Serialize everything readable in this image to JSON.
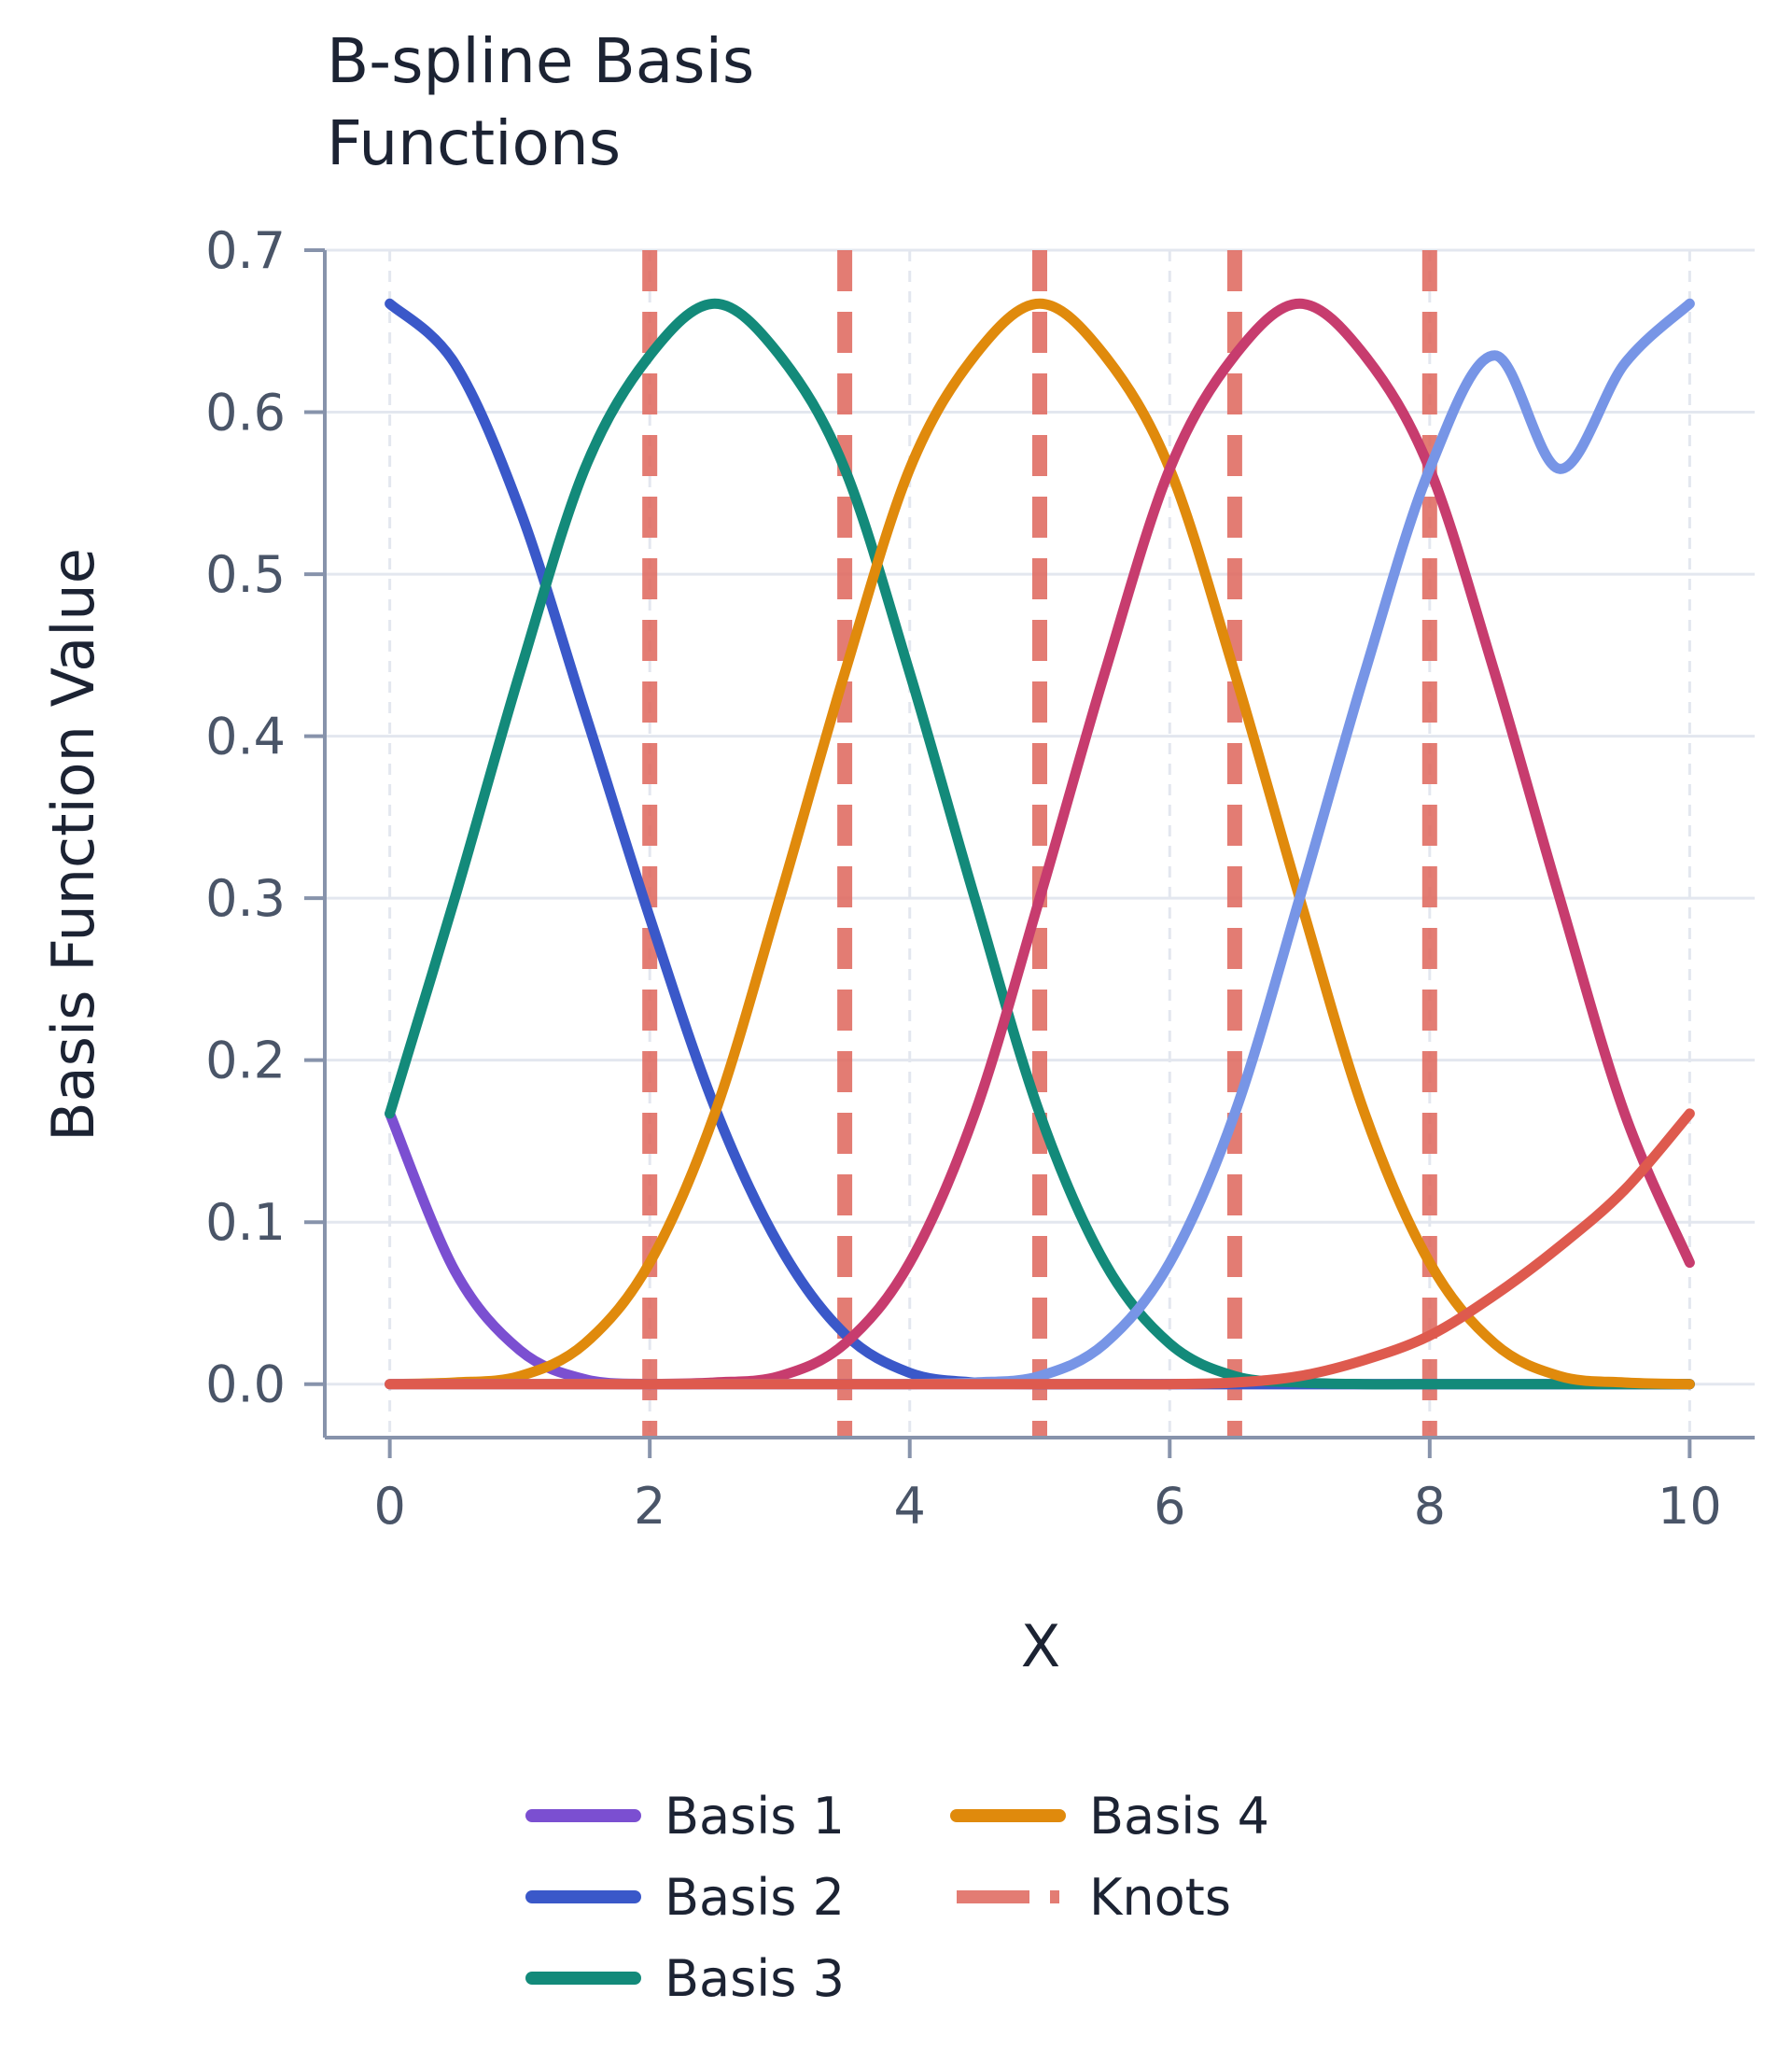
{
  "chart_data": {
    "type": "line",
    "title_lines": [
      "B-spline Basis",
      "Functions"
    ],
    "xlabel": "X",
    "ylabel": "Basis Function Value",
    "xlim": [
      -0.5,
      10.5
    ],
    "ylim": [
      -0.033,
      0.7
    ],
    "x_ticks": [
      0,
      2,
      4,
      6,
      8,
      10
    ],
    "x_tick_labels": [
      "0",
      "2",
      "4",
      "6",
      "8",
      "10"
    ],
    "y_ticks": [
      0.0,
      0.1,
      0.2,
      0.3,
      0.4,
      0.5,
      0.6,
      0.7
    ],
    "y_tick_labels": [
      "0.0",
      "0.1",
      "0.2",
      "0.3",
      "0.4",
      "0.5",
      "0.6",
      "0.7"
    ],
    "grid": true,
    "legend_position": "bottom-center",
    "x": [
      0,
      0.5,
      1,
      1.5,
      2,
      2.5,
      3,
      3.5,
      4,
      4.5,
      5,
      5.5,
      6,
      6.5,
      7,
      7.5,
      8,
      8.5,
      9,
      9.5,
      10
    ],
    "series": [
      {
        "name": "Basis 1",
        "color": "#7b4fd1",
        "in_legend": true,
        "values": [
          0.167,
          0.07,
          0.021,
          0.003,
          0,
          0,
          0,
          0,
          0,
          0,
          0,
          0,
          0,
          0,
          0,
          0,
          0,
          0,
          0,
          0,
          0
        ]
      },
      {
        "name": "Basis 2",
        "color": "#3a58c9",
        "in_legend": true,
        "values": [
          0.667,
          0.63,
          0.54,
          0.415,
          0.288,
          0.171,
          0.085,
          0.031,
          0.007,
          0.001,
          0,
          0,
          0,
          0,
          0,
          0,
          0,
          0,
          0,
          0,
          0
        ]
      },
      {
        "name": "Basis 3",
        "color": "#138a7a",
        "in_legend": true,
        "values": [
          0.167,
          0.3,
          0.439,
          0.565,
          0.635,
          0.667,
          0.635,
          0.565,
          0.439,
          0.3,
          0.167,
          0.075,
          0.025,
          0.005,
          0.001,
          0,
          0,
          0,
          0,
          0,
          0
        ]
      },
      {
        "name": "Basis 4",
        "color": "#e08a0c",
        "in_legend": true,
        "values": [
          0,
          0.001,
          0.005,
          0.025,
          0.075,
          0.167,
          0.3,
          0.439,
          0.565,
          0.635,
          0.667,
          0.635,
          0.565,
          0.439,
          0.3,
          0.167,
          0.075,
          0.025,
          0.005,
          0.001,
          0
        ]
      },
      {
        "name": "",
        "color": "#c73c6e",
        "in_legend": false,
        "values": [
          0,
          0,
          0,
          0,
          0,
          0.001,
          0.005,
          0.025,
          0.075,
          0.167,
          0.3,
          0.439,
          0.565,
          0.635,
          0.667,
          0.635,
          0.565,
          0.439,
          0.3,
          0.167,
          0.075
        ]
      },
      {
        "name": "",
        "color": "#7795e6",
        "in_legend": false,
        "values": [
          0,
          0,
          0,
          0,
          0,
          0,
          0,
          0,
          0,
          0.001,
          0.005,
          0.025,
          0.075,
          0.167,
          0.3,
          0.439,
          0.565,
          0.635,
          0.565,
          0.63,
          0.667
        ]
      },
      {
        "name": "",
        "color": "#de5a4e",
        "in_legend": false,
        "values": [
          0,
          0,
          0,
          0,
          0,
          0,
          0,
          0,
          0,
          0,
          0,
          0,
          0,
          0.001,
          0.005,
          0.015,
          0.03,
          0.055,
          0.085,
          0.12,
          0.167
        ]
      }
    ],
    "knots": {
      "name": "Knots",
      "color": "#e06a60",
      "values": [
        2,
        3.5,
        5,
        6.5,
        8
      ]
    },
    "legend_order": [
      {
        "label": "Basis 1",
        "color": "#7b4fd1",
        "dash": false
      },
      {
        "label": "Basis 2",
        "color": "#3a58c9",
        "dash": false
      },
      {
        "label": "Basis 3",
        "color": "#138a7a",
        "dash": false
      },
      {
        "label": "Basis 4",
        "color": "#e08a0c",
        "dash": false
      },
      {
        "label": "Knots",
        "color": "#e06a60",
        "dash": true
      }
    ]
  }
}
